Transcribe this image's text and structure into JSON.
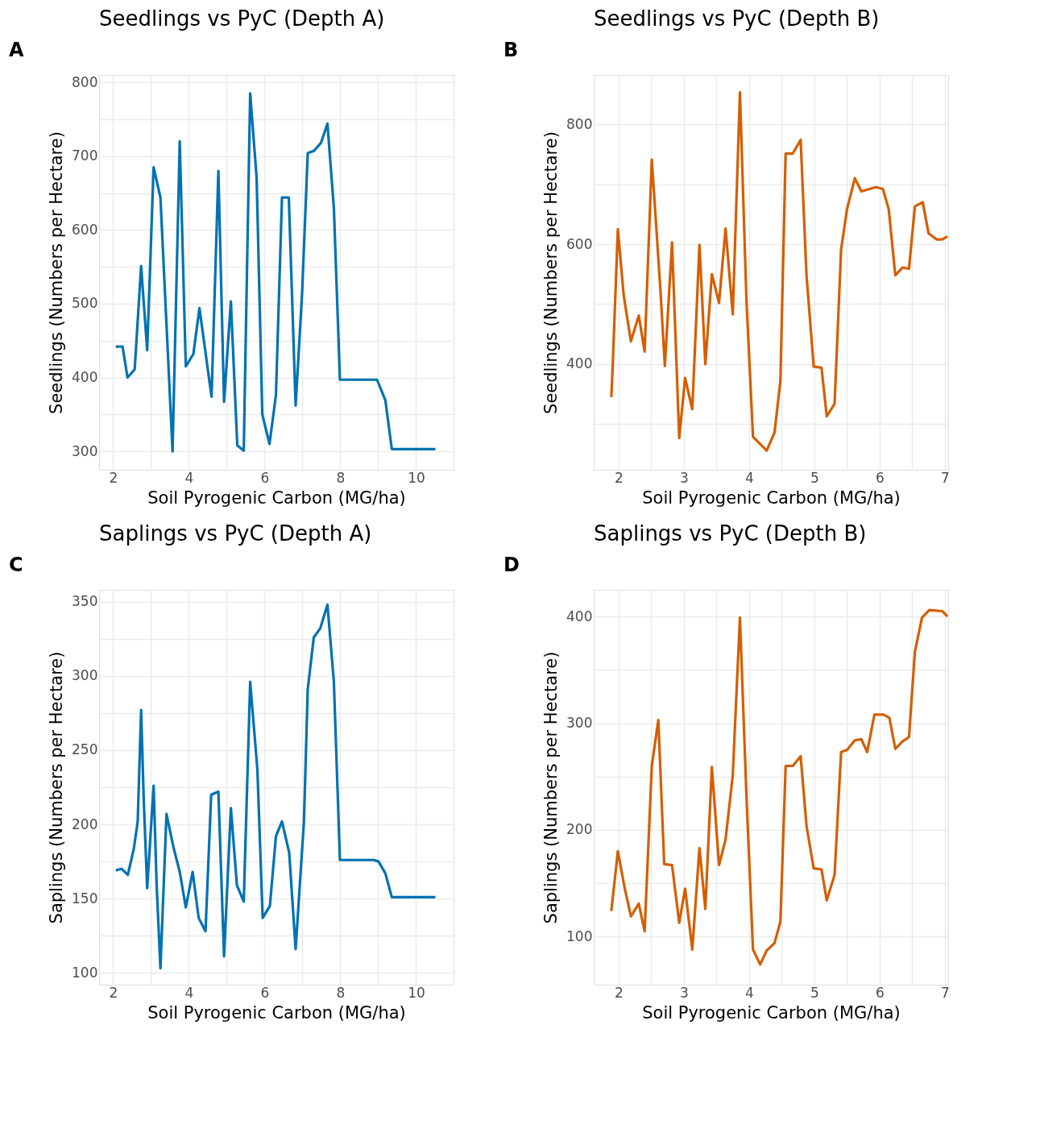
{
  "chart_data": [
    {
      "type": "line",
      "title": "Seedlings vs PyC (Depth A)",
      "xlabel": "Soil Pyrogenic Carbon (MG/ha)",
      "ylabel": "Seedlings (Numbers per Hectare)",
      "annotations": [
        "A"
      ],
      "grid": true,
      "legend": false,
      "xlim": [
        1.63,
        10.99
      ],
      "ylim": [
        275,
        810
      ],
      "xticks": [
        2,
        {
          "value": 3,
          "label": null
        },
        4,
        {
          "value": 5,
          "label": null
        },
        6,
        {
          "value": 7,
          "label": null
        },
        8,
        {
          "value": 9,
          "label": null
        },
        10
      ],
      "yticks": [
        300,
        {
          "value": 350,
          "label": null
        },
        400,
        {
          "value": 450,
          "label": null
        },
        500,
        {
          "value": 550,
          "label": null
        },
        600,
        {
          "value": 650,
          "label": null
        },
        700,
        {
          "value": 750,
          "label": null
        },
        800
      ],
      "x": [
        2.07,
        2.25,
        2.38,
        2.57,
        2.74,
        2.9,
        3.07,
        3.25,
        3.57,
        3.76,
        3.92,
        4.12,
        4.28,
        4.6,
        4.78,
        4.93,
        5.11,
        5.28,
        5.45,
        5.62,
        5.79,
        5.94,
        6.13,
        6.3,
        6.46,
        6.64,
        6.82,
        6.99,
        7.14,
        7.3,
        7.49,
        7.66,
        7.83,
        7.99,
        8.97,
        9.19,
        9.36,
        10.51
      ],
      "series": [
        {
          "color": "#0072b2",
          "values": [
            442,
            442,
            400,
            411,
            551,
            437,
            685,
            644,
            300,
            720,
            415,
            432,
            494,
            374,
            680,
            367,
            503,
            308,
            301,
            785,
            671,
            350,
            310,
            376,
            644,
            644,
            362,
            513,
            704,
            707,
            718,
            744,
            630,
            397,
            397,
            369,
            303,
            303
          ]
        }
      ]
    },
    {
      "type": "line",
      "title": "Seedlings vs PyC (Depth B)",
      "xlabel": "Soil Pyrogenic Carbon (MG/ha)",
      "ylabel": "Seedlings (Numbers per Hectare)",
      "annotations": [
        "B"
      ],
      "grid": true,
      "legend": false,
      "xlim": [
        1.62,
        7.05
      ],
      "ylim": [
        224,
        882
      ],
      "xticks": [
        2,
        {
          "value": 2.5,
          "label": null
        },
        3,
        {
          "value": 3.5,
          "label": null
        },
        4,
        {
          "value": 4.5,
          "label": null
        },
        5,
        {
          "value": 5.5,
          "label": null
        },
        6,
        {
          "value": 6.5,
          "label": null
        },
        7
      ],
      "yticks": [
        {
          "value": 300,
          "label": null
        },
        400,
        {
          "value": 500,
          "label": null
        },
        600,
        {
          "value": 700,
          "label": null
        },
        800
      ],
      "x": [
        1.89,
        1.91,
        1.99,
        2.08,
        2.19,
        2.31,
        2.4,
        2.51,
        2.64,
        2.71,
        2.82,
        2.93,
        3.02,
        3.13,
        3.24,
        3.33,
        3.43,
        3.54,
        3.64,
        3.75,
        3.86,
        3.96,
        4.06,
        4.27,
        4.39,
        4.48,
        4.56,
        4.67,
        4.79,
        4.88,
        4.99,
        5.11,
        5.19,
        5.31,
        5.41,
        5.5,
        5.62,
        5.72,
        5.94,
        6.05,
        6.14,
        6.24,
        6.35,
        6.45,
        6.54,
        6.66,
        6.75,
        6.87,
        6.96,
        7.04
      ],
      "series": [
        {
          "color": "#d55e00",
          "values": [
            345,
            394,
            625,
            514,
            438,
            481,
            421,
            741,
            527,
            397,
            603,
            277,
            377,
            325,
            599,
            400,
            550,
            502,
            626,
            483,
            853,
            506,
            279,
            256,
            286,
            372,
            751,
            751,
            774,
            548,
            396,
            394,
            313,
            334,
            591,
            658,
            710,
            688,
            695,
            692,
            658,
            548,
            561,
            559,
            663,
            670,
            618,
            608,
            608,
            613
          ]
        }
      ]
    },
    {
      "type": "line",
      "title": "Saplings vs PyC (Depth A)",
      "xlabel": "Soil Pyrogenic Carbon (MG/ha)",
      "ylabel": "Saplings (Numbers per Hectare)",
      "annotations": [
        "C"
      ],
      "grid": true,
      "legend": false,
      "xlim": [
        1.63,
        10.99
      ],
      "ylim": [
        92,
        358
      ],
      "xticks": [
        2,
        {
          "value": 3,
          "label": null
        },
        4,
        {
          "value": 5,
          "label": null
        },
        6,
        {
          "value": 7,
          "label": null
        },
        8,
        {
          "value": 9,
          "label": null
        },
        10
      ],
      "yticks": [
        100,
        {
          "value": 125,
          "label": null
        },
        150,
        {
          "value": 175,
          "label": null
        },
        200,
        {
          "value": 225,
          "label": null
        },
        250,
        {
          "value": 275,
          "label": null
        },
        300,
        {
          "value": 325,
          "label": null
        },
        350
      ],
      "x": [
        2.07,
        2.23,
        2.39,
        2.55,
        2.65,
        2.74,
        2.81,
        2.9,
        3.07,
        3.15,
        3.25,
        3.41,
        3.59,
        3.76,
        3.92,
        4.1,
        4.26,
        4.44,
        4.59,
        4.78,
        4.93,
        5.11,
        5.27,
        5.45,
        5.62,
        5.81,
        5.95,
        6.14,
        6.3,
        6.46,
        6.65,
        6.82,
        7.04,
        7.14,
        7.3,
        7.47,
        7.66,
        7.83,
        7.99,
        8.88,
        9.01,
        9.19,
        9.36,
        10.51
      ],
      "series": [
        {
          "color": "#0072b2",
          "values": [
            169,
            170,
            166,
            184,
            202,
            277,
            216,
            157,
            226,
            159,
            103,
            207,
            185,
            168,
            144,
            168,
            137,
            128,
            220,
            222,
            111,
            211,
            159,
            148,
            296,
            237,
            137,
            145,
            192,
            202,
            181,
            116,
            202,
            291,
            326,
            332,
            348,
            296,
            176,
            176,
            175,
            167,
            151,
            151
          ]
        }
      ]
    },
    {
      "type": "line",
      "title": "Saplings vs PyC (Depth B)",
      "xlabel": "Soil Pyrogenic Carbon (MG/ha)",
      "ylabel": "Saplings (Numbers per Hectare)",
      "annotations": [
        "D"
      ],
      "grid": true,
      "legend": false,
      "xlim": [
        1.62,
        7.05
      ],
      "ylim": [
        55,
        425
      ],
      "xticks": [
        2,
        {
          "value": 2.5,
          "label": null
        },
        3,
        {
          "value": 3.5,
          "label": null
        },
        4,
        {
          "value": 4.5,
          "label": null
        },
        5,
        {
          "value": 5.5,
          "label": null
        },
        6,
        {
          "value": 6.5,
          "label": null
        },
        7
      ],
      "yticks": [
        100,
        {
          "value": 150,
          "label": null
        },
        200,
        {
          "value": 250,
          "label": null
        },
        300,
        {
          "value": 350,
          "label": null
        },
        400
      ],
      "x": [
        1.89,
        1.99,
        2.09,
        2.19,
        2.31,
        2.4,
        2.51,
        2.61,
        2.7,
        2.82,
        2.93,
        3.02,
        3.13,
        3.24,
        3.33,
        3.43,
        3.54,
        3.64,
        3.75,
        3.86,
        3.96,
        4.06,
        4.17,
        4.27,
        4.39,
        4.48,
        4.56,
        4.67,
        4.79,
        4.88,
        4.99,
        5.11,
        5.19,
        5.31,
        5.41,
        5.5,
        5.62,
        5.72,
        5.81,
        5.92,
        6.06,
        6.15,
        6.24,
        6.35,
        6.45,
        6.54,
        6.65,
        6.76,
        6.96,
        7.04
      ],
      "series": [
        {
          "color": "#d55e00",
          "values": [
            124,
            180,
            147,
            119,
            131,
            105,
            260,
            303,
            168,
            167,
            113,
            145,
            88,
            183,
            126,
            259,
            167,
            191,
            251,
            399,
            232,
            88,
            74,
            87,
            94,
            114,
            260,
            260,
            269,
            204,
            164,
            163,
            134,
            158,
            273,
            275,
            284,
            285,
            273,
            308,
            308,
            305,
            276,
            283,
            287,
            367,
            399,
            406,
            405,
            400
          ]
        }
      ]
    }
  ]
}
